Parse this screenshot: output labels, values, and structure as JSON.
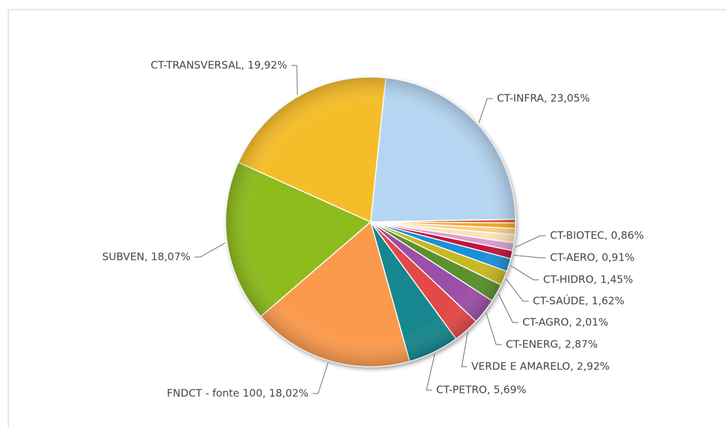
{
  "chart_data": {
    "type": "pie",
    "labels": [
      "CT-INFRA, 23,05%",
      null,
      null,
      null,
      null,
      "CT-BIOTEC, 0,86%",
      "CT-AERO, 0,91%",
      "CT-HIDRO, 1,45%",
      "CT-SAÚDE, 1,62%",
      "CT-AGRO, 2,01%",
      "CT-ENERG, 2,87%",
      "VERDE E AMARELO, 2,92%",
      "CT-PETRO, 5,69%",
      "FNDCT - fonte 100, 18,02%",
      "SUBVEN, 18,07%",
      "CT-TRANSVERSAL, 19,92%"
    ],
    "values": [
      23.05,
      0.4,
      0.6,
      0.7,
      0.91,
      0.86,
      0.91,
      1.45,
      1.62,
      2.01,
      2.87,
      2.92,
      5.69,
      18.02,
      18.07,
      19.92
    ],
    "colors": [
      "#b5d6f3",
      "#d9541e",
      "#f5a623",
      "#f7cf8e",
      "#fbe3b8",
      "#d9a0cf",
      "#c0143c",
      "#1e90d6",
      "#c7b922",
      "#5b902f",
      "#9b4fa8",
      "#e24a4a",
      "#16878e",
      "#fb9a4e",
      "#8dbb1c",
      "#f6bd2a"
    ]
  }
}
